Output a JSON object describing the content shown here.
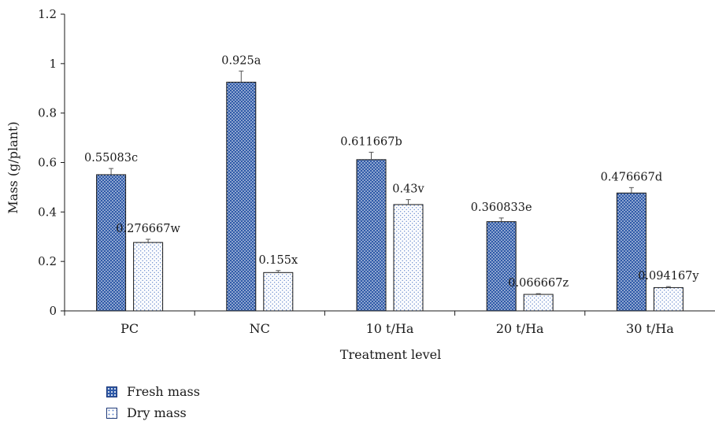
{
  "colors": {
    "fresh": "#2f5aa8",
    "dry": "#6e8fd0",
    "axis": "#1a1a1a"
  },
  "chart_data": {
    "type": "bar",
    "categories": [
      "PC",
      "NC",
      "10 t/Ha",
      "20 t/Ha",
      "30 t/Ha"
    ],
    "series": [
      {
        "name": "Fresh mass",
        "values": [
          0.55083,
          0.925,
          0.611667,
          0.360833,
          0.476667
        ],
        "errors": [
          0.025,
          0.045,
          0.03,
          0.015,
          0.022
        ],
        "labels": [
          "0.55083c",
          "0.925a",
          "0.611667b",
          "0.360833e",
          "0.476667d"
        ],
        "pattern": "dense-dots"
      },
      {
        "name": "Dry mass",
        "values": [
          0.276667,
          0.155,
          0.43,
          0.066667,
          0.094167
        ],
        "errors": [
          0.013,
          0.008,
          0.02,
          0.003,
          0.004
        ],
        "labels": [
          "0.276667w",
          "0.155x",
          "0.43v",
          "0.066667z",
          "0.094167y"
        ],
        "pattern": "sparse-dots"
      }
    ],
    "xlabel": "Treatment level",
    "ylabel": "Mass (g/plant)",
    "ylim": [
      0,
      1.2
    ],
    "yticks": [
      "0",
      "0.2",
      "0.4",
      "0.6",
      "0.8",
      "1",
      "1.2"
    ],
    "grid": false,
    "legend_position": "bottom-left"
  }
}
